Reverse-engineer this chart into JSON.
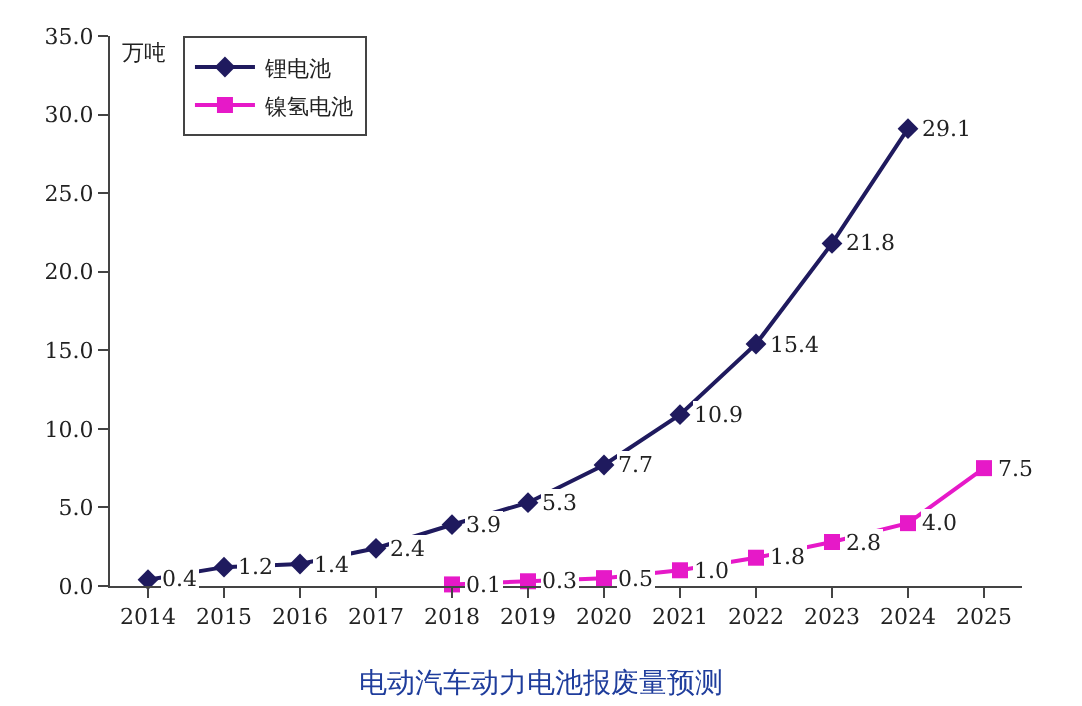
{
  "chart_data": {
    "type": "line",
    "title": "电动汽车动力电池报废量预测",
    "ylabel": "万吨",
    "categories": [
      "2014",
      "2015",
      "2016",
      "2017",
      "2018",
      "2019",
      "2020",
      "2021",
      "2022",
      "2023",
      "2024",
      "2025"
    ],
    "series": [
      {
        "name": "锂电池",
        "color": "#1f1a5e",
        "marker": "diamond",
        "values": [
          0.4,
          1.2,
          1.4,
          2.4,
          3.9,
          5.3,
          7.7,
          10.9,
          15.4,
          21.8,
          29.1,
          null
        ],
        "value_labels": [
          "0.4",
          "1.2",
          "1.4",
          "2.4",
          "3.9",
          "5.3",
          "7.7",
          "10.9",
          "15.4",
          "21.8",
          "29.1",
          null
        ]
      },
      {
        "name": "镍氢电池",
        "color": "#e619c8",
        "marker": "square",
        "values": [
          null,
          null,
          null,
          null,
          0.1,
          0.3,
          0.5,
          1.0,
          1.8,
          2.8,
          4.0,
          7.5
        ],
        "value_labels": [
          null,
          null,
          null,
          null,
          "0.1",
          "0.3",
          "0.5",
          "1.0",
          "1.8",
          "2.8",
          "4.0",
          "7.5"
        ]
      }
    ],
    "ylim": [
      0,
      35
    ],
    "yticks": [
      {
        "value": 0,
        "label": "0.0"
      },
      {
        "value": 5,
        "label": "5.0"
      },
      {
        "value": 10,
        "label": "10.0"
      },
      {
        "value": 15,
        "label": "15.0"
      },
      {
        "value": 20,
        "label": "20.0"
      },
      {
        "value": 25,
        "label": "25.0"
      },
      {
        "value": 30,
        "label": "30.0"
      },
      {
        "value": 35,
        "label": "35.0"
      }
    ],
    "legend": "top left",
    "line_style": "solid"
  }
}
